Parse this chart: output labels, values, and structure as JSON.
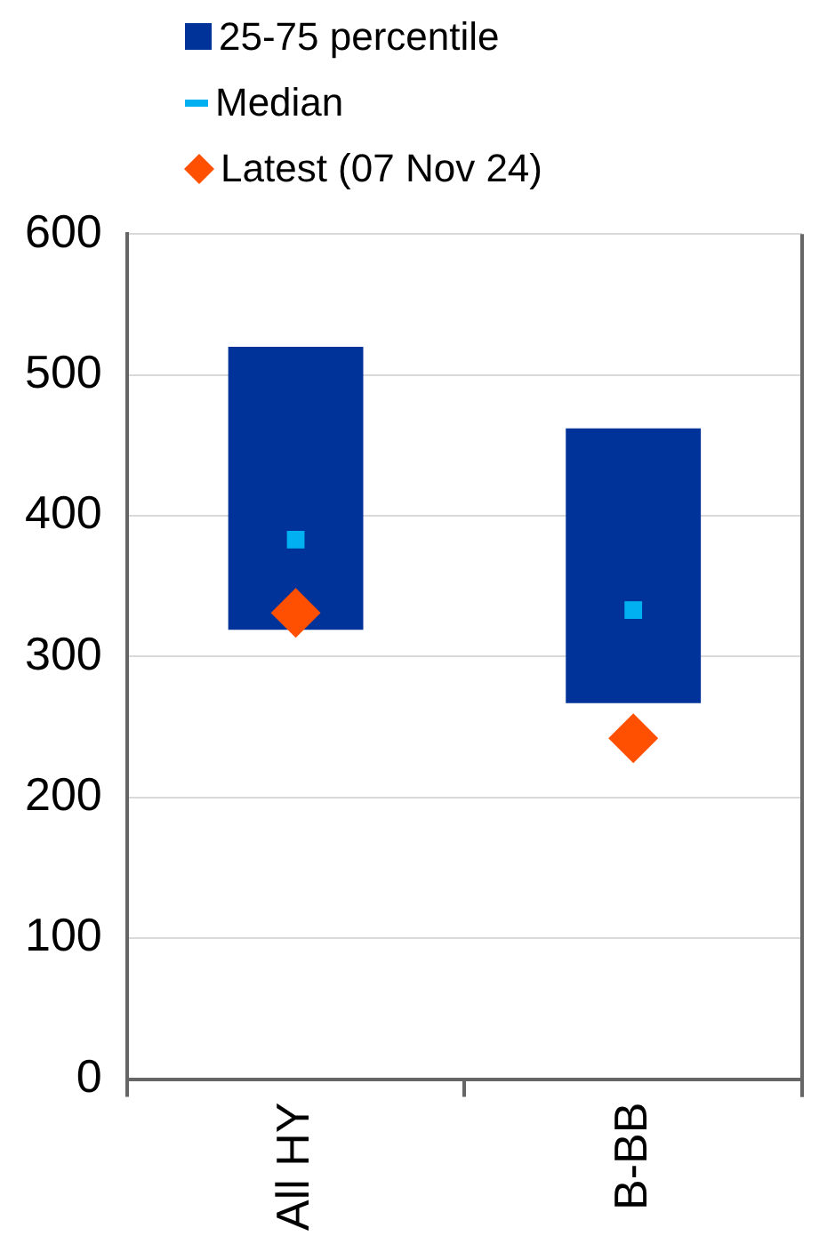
{
  "chart_data": {
    "type": "bar",
    "categories": [
      "All HY",
      "B-BB"
    ],
    "series": [
      {
        "name": "25-75 percentile",
        "color": "#003399",
        "values": [
          201,
          195
        ],
        "base": [
          319,
          267
        ]
      },
      {
        "type": "scatter",
        "name": "Median",
        "color": "#00b0f0",
        "marker": "square",
        "x": [
          "All HY",
          "B-BB"
        ],
        "values": [
          383,
          333
        ]
      },
      {
        "type": "scatter",
        "name": "Latest (07 Nov 24)",
        "color": "#ff4f00",
        "marker": "diamond",
        "x": [
          "All HY",
          "B-BB"
        ],
        "values": [
          331,
          242
        ]
      }
    ],
    "ylim": [
      0,
      600
    ],
    "yticks": [
      0,
      100,
      200,
      300,
      400,
      500,
      600
    ],
    "grid": "y",
    "legend": "top left"
  }
}
